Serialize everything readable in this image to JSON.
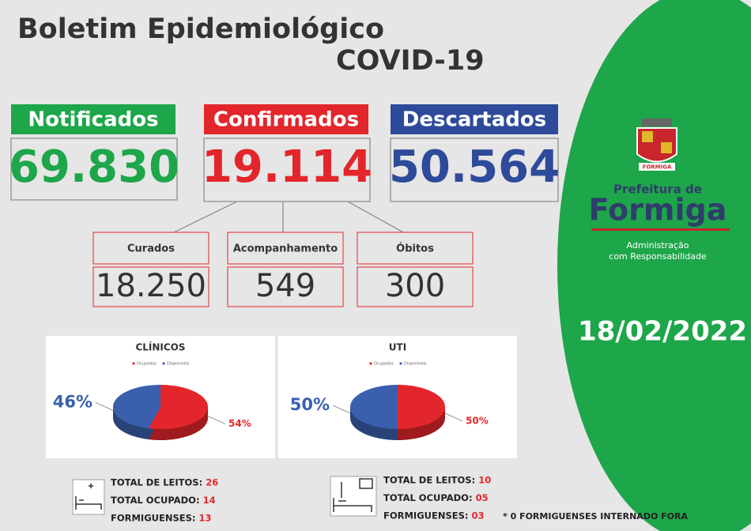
{
  "header": {
    "title": "Boletim Epidemiológico",
    "subtitle": "COVID-19"
  },
  "totals": [
    {
      "label": "Notificados",
      "value": "69.830"
    },
    {
      "label": "Confirmados",
      "value": "19.114"
    },
    {
      "label": "Descartados",
      "value": "50.564"
    }
  ],
  "outcomes": [
    {
      "label": "Curados",
      "value": "18.250"
    },
    {
      "label": "Acompanhamento",
      "value": "549"
    },
    {
      "label": "Óbitos",
      "value": "300"
    }
  ],
  "chart_data": [
    {
      "type": "pie",
      "title": "CLÍNICOS",
      "categories": [
        "Ocupados",
        "Disponíveis"
      ],
      "values": [
        54,
        46
      ],
      "value_labels": [
        "54%",
        "46%"
      ],
      "colors": [
        "#e3262b",
        "#3a60ad"
      ]
    },
    {
      "type": "pie",
      "title": "UTI",
      "categories": [
        "Ocupados",
        "Disponíveis"
      ],
      "values": [
        50,
        50
      ],
      "value_labels": [
        "50%",
        "50%"
      ],
      "colors": [
        "#e3262b",
        "#3a60ad"
      ]
    }
  ],
  "beds": [
    {
      "rows": [
        {
          "label": "TOTAL DE LEITOS:",
          "value": "26"
        },
        {
          "label": "TOTAL OCUPADO:",
          "value": "14"
        },
        {
          "label": "FORMIGUENSES:",
          "value": "13"
        }
      ]
    },
    {
      "rows": [
        {
          "label": "TOTAL DE LEITOS:",
          "value": "10"
        },
        {
          "label": "TOTAL OCUPADO:",
          "value": "05"
        },
        {
          "label": "FORMIGUENSES:",
          "value": "03"
        }
      ]
    }
  ],
  "note": "* 0 FORMIGUENSES INTERNADO FORA",
  "sidebar": {
    "crest": "FORMIGA",
    "prefeitura": "Prefeitura de",
    "city": "Formiga",
    "tagline": [
      "Administração",
      "com Responsabilidade"
    ],
    "date": "18/02/2022"
  }
}
